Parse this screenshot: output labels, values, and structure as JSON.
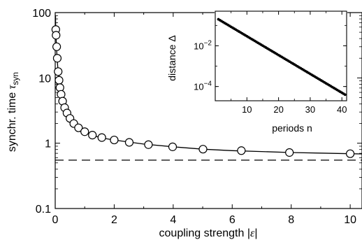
{
  "chart_data": [
    {
      "type": "line",
      "xlabel": "coupling strength |ε|",
      "xlabel_parts": {
        "text": "coupling strength |",
        "symbol": "ε",
        "end": "|"
      },
      "ylabel_parts": {
        "text": "synchr. time ",
        "symbol": "τ",
        "subscript": "syn"
      },
      "xlim": [
        0,
        10.4
      ],
      "ylim": [
        0.1,
        100
      ],
      "yscale": "log",
      "grid": false,
      "x_ticks": [
        0,
        2,
        4,
        6,
        8,
        10
      ],
      "y_ticks": [
        {
          "value": 0.1,
          "label": "0.1"
        },
        {
          "value": 1,
          "label": "1"
        },
        {
          "value": 10,
          "label": "10"
        },
        {
          "value": 100,
          "label": "100"
        }
      ],
      "series": [
        {
          "kind": "markers",
          "marker": "circle-open",
          "x": [
            0.02,
            0.03,
            0.05,
            0.07,
            0.1,
            0.13,
            0.16,
            0.2,
            0.25,
            0.32,
            0.4,
            0.5,
            0.63,
            0.79,
            1.0,
            1.26,
            1.58,
            2.0,
            2.51,
            3.16,
            3.98,
            5.01,
            6.31,
            7.94,
            10.0
          ],
          "y": [
            55,
            45,
            30,
            20,
            12.5,
            9.2,
            7.1,
            5.6,
            4.4,
            3.5,
            2.9,
            2.4,
            2.0,
            1.72,
            1.5,
            1.33,
            1.22,
            1.12,
            1.03,
            0.95,
            0.88,
            0.81,
            0.77,
            0.72,
            0.69
          ]
        },
        {
          "kind": "line",
          "style": "solid",
          "x": [
            0.012,
            0.015,
            0.02,
            0.03,
            0.05,
            0.07,
            0.1,
            0.15,
            0.2,
            0.3,
            0.4,
            0.5,
            0.7,
            1.0,
            1.5,
            2.0,
            3.0,
            4.0,
            5.0,
            6.0,
            7.0,
            8.0,
            9.0,
            10.0,
            10.4
          ],
          "y": [
            90,
            70,
            55,
            40,
            26,
            18,
            12.5,
            8.6,
            5.6,
            3.9,
            2.9,
            2.4,
            1.9,
            1.5,
            1.22,
            1.12,
            0.97,
            0.88,
            0.81,
            0.77,
            0.745,
            0.72,
            0.705,
            0.69,
            0.685
          ]
        },
        {
          "kind": "line",
          "style": "dashed",
          "x": [
            0,
            10.4
          ],
          "y": [
            0.55,
            0.55
          ]
        }
      ]
    },
    {
      "type": "scatter",
      "inset": true,
      "xlabel": "periods n",
      "ylabel": "distance Δ",
      "xlim": [
        0,
        41.5
      ],
      "ylim": [
        2e-05,
        0.5
      ],
      "yscale": "log",
      "x_ticks": [
        10,
        20,
        30,
        40
      ],
      "y_ticks": [
        {
          "value": 0.01,
          "base": "10",
          "exp": "−2"
        },
        {
          "value": 0.0001,
          "base": "10",
          "exp": "−4"
        }
      ],
      "series": [
        {
          "kind": "points",
          "n_start": 1,
          "n_end": 41,
          "y_first": 0.2,
          "y_last": 4e-05
        }
      ]
    }
  ]
}
